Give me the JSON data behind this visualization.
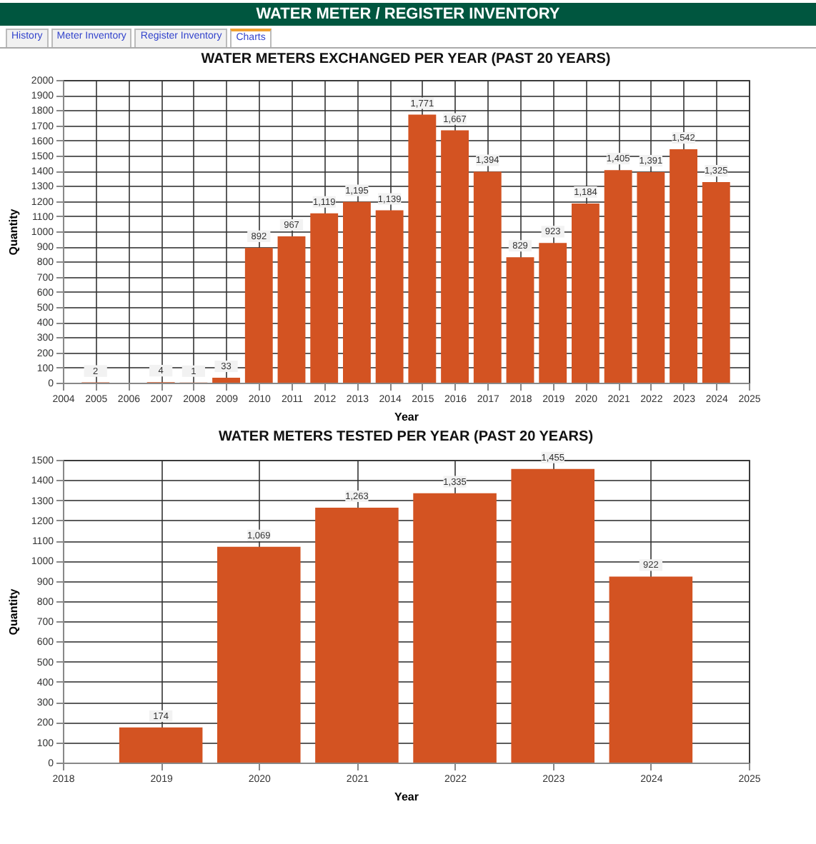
{
  "chart_data": [
    {
      "type": "other",
      "title": "WATER METER / REGISTER INVENTORY",
      "annotations": [
        "History",
        "Meter Inventory",
        "Register Inventory",
        "Charts"
      ]
    },
    {
      "type": "bar",
      "title": "WATER METERS EXCHANGED PER YEAR (PAST 20 YEARS)",
      "xlabel": "Year",
      "ylabel": "Quantity",
      "x": [
        2005,
        2007,
        2008,
        2009,
        2010,
        2011,
        2012,
        2013,
        2014,
        2015,
        2016,
        2017,
        2018,
        2019,
        2020,
        2021,
        2022,
        2023,
        2024
      ],
      "values": [
        2,
        4,
        1,
        33,
        892,
        967,
        1119,
        1195,
        1139,
        1771,
        1667,
        1394,
        829,
        923,
        1184,
        1405,
        1391,
        1542,
        1325
      ],
      "value_labels": [
        "2",
        "4",
        "1",
        "33",
        "892",
        "967",
        "1,119",
        "1,195",
        "1,139",
        "1,771",
        "1,667",
        "1,394",
        "829",
        "923",
        "1,184",
        "1,405",
        "1,391",
        "1,542",
        "1,325"
      ],
      "color": "#d35322",
      "xlim": [
        2004,
        2025
      ],
      "xticks": [
        2004,
        2005,
        2006,
        2007,
        2008,
        2009,
        2010,
        2011,
        2012,
        2013,
        2014,
        2015,
        2016,
        2017,
        2018,
        2019,
        2020,
        2021,
        2022,
        2023,
        2024,
        2025
      ],
      "ylim": [
        0,
        2000
      ],
      "yticks": [
        0,
        100,
        200,
        300,
        400,
        500,
        600,
        700,
        800,
        900,
        1000,
        1100,
        1200,
        1300,
        1400,
        1500,
        1600,
        1700,
        1800,
        1900,
        2000
      ],
      "grid": true
    },
    {
      "type": "bar",
      "title": "WATER METERS TESTED PER YEAR (PAST 20 YEARS)",
      "xlabel": "Year",
      "ylabel": "Quantity",
      "x": [
        2019,
        2020,
        2021,
        2022,
        2023,
        2024
      ],
      "values": [
        174,
        1069,
        1263,
        1335,
        1455,
        922
      ],
      "value_labels": [
        "174",
        "1,069",
        "1,263",
        "1,335",
        "1,455",
        "922"
      ],
      "color": "#d35322",
      "xlim": [
        2018,
        2025
      ],
      "xticks": [
        2018,
        2019,
        2020,
        2021,
        2022,
        2023,
        2024,
        2025
      ],
      "ylim": [
        0,
        1500
      ],
      "yticks": [
        0,
        100,
        200,
        300,
        400,
        500,
        600,
        700,
        800,
        900,
        1000,
        1100,
        1200,
        1300,
        1400,
        1500
      ],
      "grid": true
    }
  ]
}
